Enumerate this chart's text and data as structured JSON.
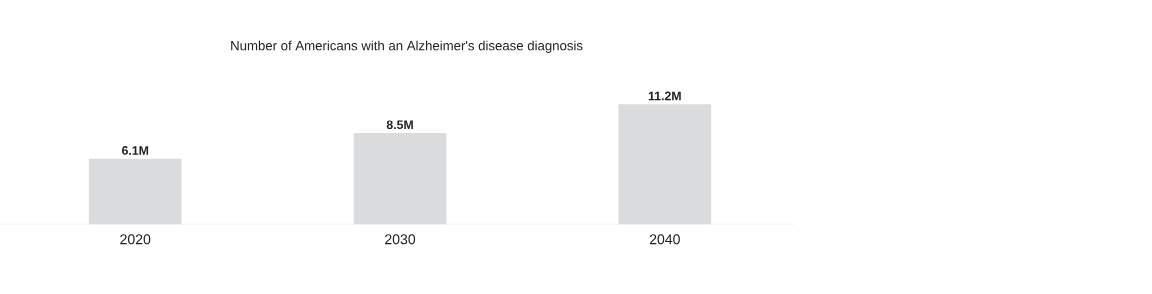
{
  "chart_data": {
    "type": "bar",
    "title": "Number of Americans with an Alzheimer's disease diagnosis",
    "categories": [
      "2020",
      "2030",
      "2040"
    ],
    "values": [
      6.1,
      8.5,
      11.2
    ],
    "value_labels": [
      "6.1M",
      "8.5M",
      "11.2M"
    ],
    "color": "#d9dbdc"
  }
}
